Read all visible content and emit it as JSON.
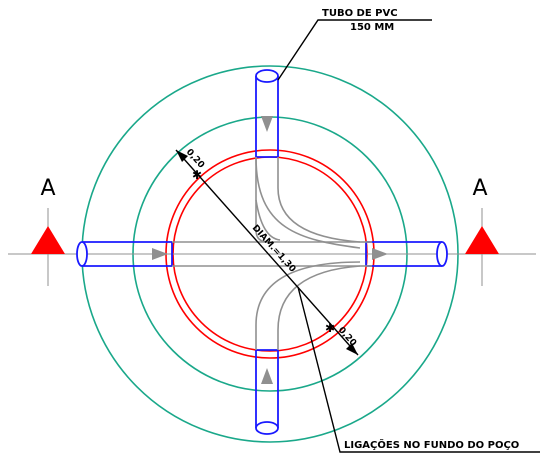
{
  "labels": {
    "pipe_title_line1": "TUBO DE PVC",
    "pipe_title_line2": "150 MM",
    "bottom_connections": "LIGAÇÕES NO FUNDO DO POÇO",
    "diameter": "DIAM.=1,30",
    "wall_top_left": "0,20",
    "wall_bottom_right": "0,20",
    "section_left": "A",
    "section_right": "A"
  },
  "colors": {
    "outer_circles": "#1aa88a",
    "wall_circles": "#ff0000",
    "pipes": "#1a1aff",
    "channels": "#909090",
    "section_marker": "#ff0000",
    "annotation": "#000000"
  }
}
